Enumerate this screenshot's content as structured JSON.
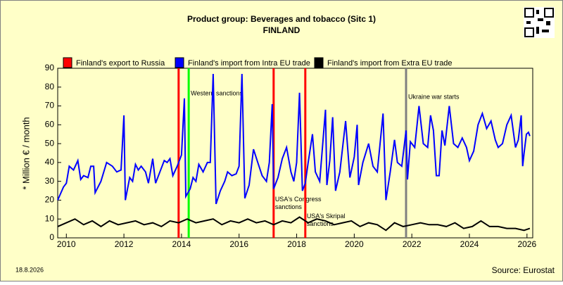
{
  "chart_data": {
    "type": "line",
    "title": "Product group: Beverages and tobacco (Sitc 1)",
    "subtitle": "FINLAND",
    "y_label": "* Million € / month",
    "date": "18.8.2026",
    "source": "Source: Eurostat",
    "xlim": [
      2009.7,
      2026.2
    ],
    "xticks": [
      2010,
      2012,
      2014,
      2016,
      2018,
      2020,
      2022,
      2024,
      2026
    ],
    "ylim": [
      0,
      90
    ],
    "yticks": [
      0,
      10,
      20,
      30,
      40,
      50,
      60,
      70,
      80,
      90
    ],
    "series": [
      {
        "name": "Finland's export to Russia",
        "color": "#ff0000",
        "x": [],
        "values": []
      },
      {
        "name": "Finland's import from Intra EU trade",
        "color": "#0000ff",
        "x": [
          2009.7,
          2009.9,
          2010.0,
          2010.1,
          2010.25,
          2010.4,
          2010.5,
          2010.6,
          2010.75,
          2010.85,
          2010.95,
          2011.0,
          2011.2,
          2011.4,
          2011.6,
          2011.75,
          2011.9,
          2012.0,
          2012.05,
          2012.2,
          2012.3,
          2012.4,
          2012.5,
          2012.6,
          2012.75,
          2012.85,
          2013.0,
          2013.1,
          2013.25,
          2013.4,
          2013.5,
          2013.6,
          2013.7,
          2013.85,
          2014.0,
          2014.1,
          2014.15,
          2014.3,
          2014.4,
          2014.5,
          2014.6,
          2014.75,
          2014.9,
          2015.0,
          2015.1,
          2015.2,
          2015.35,
          2015.5,
          2015.6,
          2015.75,
          2015.9,
          2016.0,
          2016.1,
          2016.2,
          2016.35,
          2016.5,
          2016.65,
          2016.8,
          2016.95,
          2017.05,
          2017.15,
          2017.2,
          2017.35,
          2017.5,
          2017.65,
          2017.8,
          2017.9,
          2018.0,
          2018.1,
          2018.2,
          2018.3,
          2018.4,
          2018.55,
          2018.65,
          2018.8,
          2019.0,
          2019.05,
          2019.15,
          2019.25,
          2019.35,
          2019.5,
          2019.7,
          2019.85,
          2020.0,
          2020.1,
          2020.15,
          2020.3,
          2020.5,
          2020.65,
          2020.8,
          2021.0,
          2021.1,
          2021.25,
          2021.4,
          2021.5,
          2021.65,
          2021.8,
          2021.85,
          2021.95,
          2022.1,
          2022.25,
          2022.4,
          2022.55,
          2022.65,
          2022.75,
          2022.85,
          2022.95,
          2023.05,
          2023.15,
          2023.3,
          2023.45,
          2023.6,
          2023.75,
          2023.9,
          2024.0,
          2024.15,
          2024.3,
          2024.45,
          2024.6,
          2024.75,
          2024.9,
          2025.0,
          2025.15,
          2025.3,
          2025.45,
          2025.6,
          2025.7,
          2025.8,
          2025.85,
          2025.9,
          2025.98,
          2026.05,
          2026.1
        ],
        "values": [
          20,
          27,
          29,
          38,
          36,
          41,
          31,
          33,
          32,
          38,
          38,
          24,
          30,
          40,
          38,
          35,
          36,
          65,
          20,
          32,
          30,
          39,
          36,
          38,
          35,
          29,
          42,
          29,
          35,
          41,
          40,
          42,
          33,
          38,
          44,
          74,
          22,
          26,
          32,
          30,
          39,
          35,
          40,
          40,
          87,
          18,
          25,
          30,
          35,
          33,
          34,
          38,
          87,
          21,
          28,
          47,
          40,
          33,
          30,
          40,
          71,
          26,
          32,
          42,
          48,
          35,
          30,
          40,
          77,
          25,
          29,
          40,
          55,
          35,
          30,
          68,
          28,
          41,
          64,
          25,
          35,
          62,
          32,
          43,
          60,
          28,
          40,
          50,
          38,
          35,
          66,
          20,
          35,
          52,
          40,
          38,
          57,
          31,
          51,
          48,
          70,
          50,
          48,
          65,
          57,
          33,
          33,
          57,
          49,
          70,
          50,
          48,
          53,
          48,
          41,
          46,
          60,
          66,
          58,
          62,
          52,
          48,
          50,
          60,
          65,
          48,
          52,
          65,
          38,
          45,
          55,
          56,
          54
        ]
      },
      {
        "name": "Finland's import from Extra EU trade",
        "color": "#000000",
        "x": [
          2009.7,
          2010.0,
          2010.3,
          2010.6,
          2010.9,
          2011.2,
          2011.5,
          2011.8,
          2012.1,
          2012.4,
          2012.7,
          2013.0,
          2013.3,
          2013.6,
          2013.9,
          2014.2,
          2014.5,
          2014.8,
          2015.1,
          2015.4,
          2015.7,
          2016.0,
          2016.3,
          2016.6,
          2016.9,
          2017.2,
          2017.5,
          2017.8,
          2018.1,
          2018.4,
          2018.7,
          2019.0,
          2019.3,
          2019.6,
          2019.9,
          2020.2,
          2020.5,
          2020.8,
          2021.1,
          2021.4,
          2021.7,
          2022.0,
          2022.3,
          2022.6,
          2022.9,
          2023.2,
          2023.5,
          2023.8,
          2024.1,
          2024.4,
          2024.7,
          2025.0,
          2025.3,
          2025.6,
          2025.9,
          2026.1
        ],
        "values": [
          6,
          8,
          10,
          7,
          9,
          6,
          9,
          7,
          8,
          9,
          7,
          8,
          6,
          9,
          8,
          10,
          8,
          9,
          10,
          7,
          9,
          8,
          10,
          8,
          9,
          7,
          9,
          8,
          11,
          8,
          10,
          9,
          7,
          8,
          9,
          6,
          8,
          7,
          4,
          8,
          6,
          7,
          8,
          7,
          7,
          6,
          8,
          5,
          6,
          9,
          6,
          6,
          5,
          5,
          4,
          5
        ]
      }
    ],
    "events": [
      {
        "x": 2013.9,
        "color": "#ff0000"
      },
      {
        "x": 2014.25,
        "color": "#00ff00",
        "label": "Western sanctions"
      },
      {
        "x": 2017.2,
        "color": "#ff0000",
        "label": "USA's Congress sanctions"
      },
      {
        "x": 2018.3,
        "color": "#ff0000",
        "label": "USA's Skripal sanctions"
      },
      {
        "x": 2021.8,
        "color": "#808080",
        "label": "Ukraine war starts"
      }
    ]
  }
}
